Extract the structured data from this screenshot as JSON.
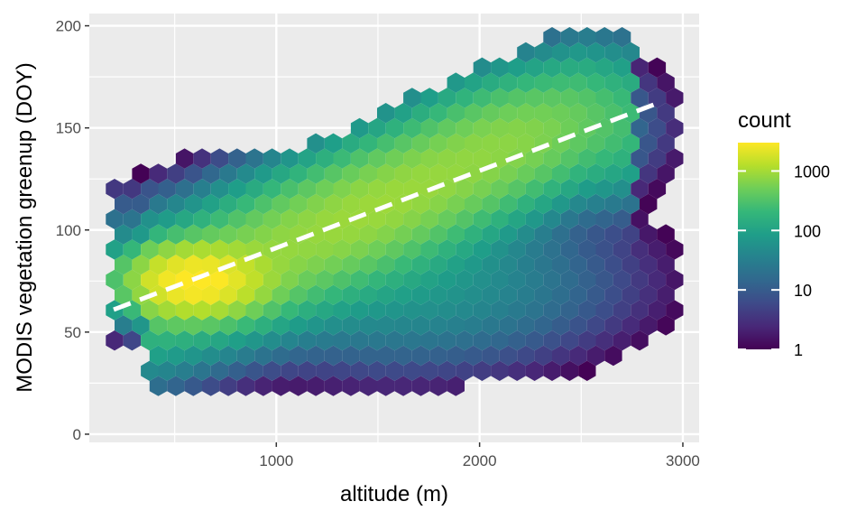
{
  "chart_data": {
    "type": "hexbin",
    "xlabel": "altitude (m)",
    "ylabel": "MODIS vegetation greenup (DOY)",
    "xlim": [
      80,
      3080
    ],
    "ylim": [
      -4,
      206
    ],
    "x_ticks": [
      1000,
      2000,
      3000
    ],
    "x_tick_labels": [
      "1000",
      "2000",
      "3000"
    ],
    "y_ticks": [
      0,
      50,
      100,
      150,
      200
    ],
    "y_tick_labels": [
      "0",
      "50",
      "100",
      "150",
      "200"
    ],
    "grid": true,
    "legend": {
      "title": "count",
      "placement": "right",
      "scale": "log",
      "breaks": [
        1,
        10,
        100,
        1000
      ],
      "break_labels": [
        "1",
        "10",
        "100",
        "1000"
      ],
      "max": 3000,
      "colormap": [
        "#440154",
        "#482878",
        "#3e4a89",
        "#31688e",
        "#26828e",
        "#1f9e89",
        "#35b779",
        "#6ece58",
        "#b5de2b",
        "#fde725"
      ]
    },
    "trend_line": {
      "style": "dashed",
      "color": "#ffffff",
      "x": [
        200,
        2900
      ],
      "y": [
        61,
        163
      ]
    },
    "density_model": {
      "core": {
        "x": 600,
        "y": 75,
        "peak": 3000
      },
      "ridge": {
        "x_start": 600,
        "x_end": 2300,
        "y_start": 75,
        "y_end": 145
      }
    },
    "colors": {
      "panel_background": "#ebebeb",
      "grid_major": "#ffffff",
      "trend_line": "#ffffff"
    }
  }
}
